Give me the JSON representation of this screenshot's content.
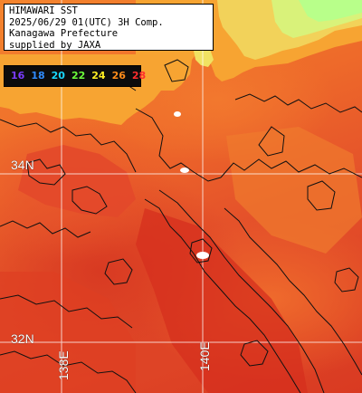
{
  "info": {
    "line1": "HIMAWARI SST",
    "line2": "2025/06/29 01(UTC) 3H Comp.",
    "line3": "Kanagawa Prefecture",
    "line4": "supplied by JAXA"
  },
  "legend": {
    "labels": [
      "16",
      "18",
      "20",
      "22",
      "24",
      "26",
      "28"
    ],
    "colors": [
      "#7a3cff",
      "#2f8cff",
      "#19d8ff",
      "#6cff3a",
      "#ffee22",
      "#ff8c1a",
      "#ff2d2d"
    ]
  },
  "grid_labels": {
    "lat_34": "34N",
    "lat_32": "32N",
    "lon_138": "138E",
    "lon_140": "140E"
  },
  "colors": {
    "land": "#f7b238",
    "coast_cool": "#c8ff80",
    "sea_warm": "#d93a22",
    "sea_mid": "#ef6a2a",
    "gridline": "#ffffff",
    "contour": "#111111"
  }
}
